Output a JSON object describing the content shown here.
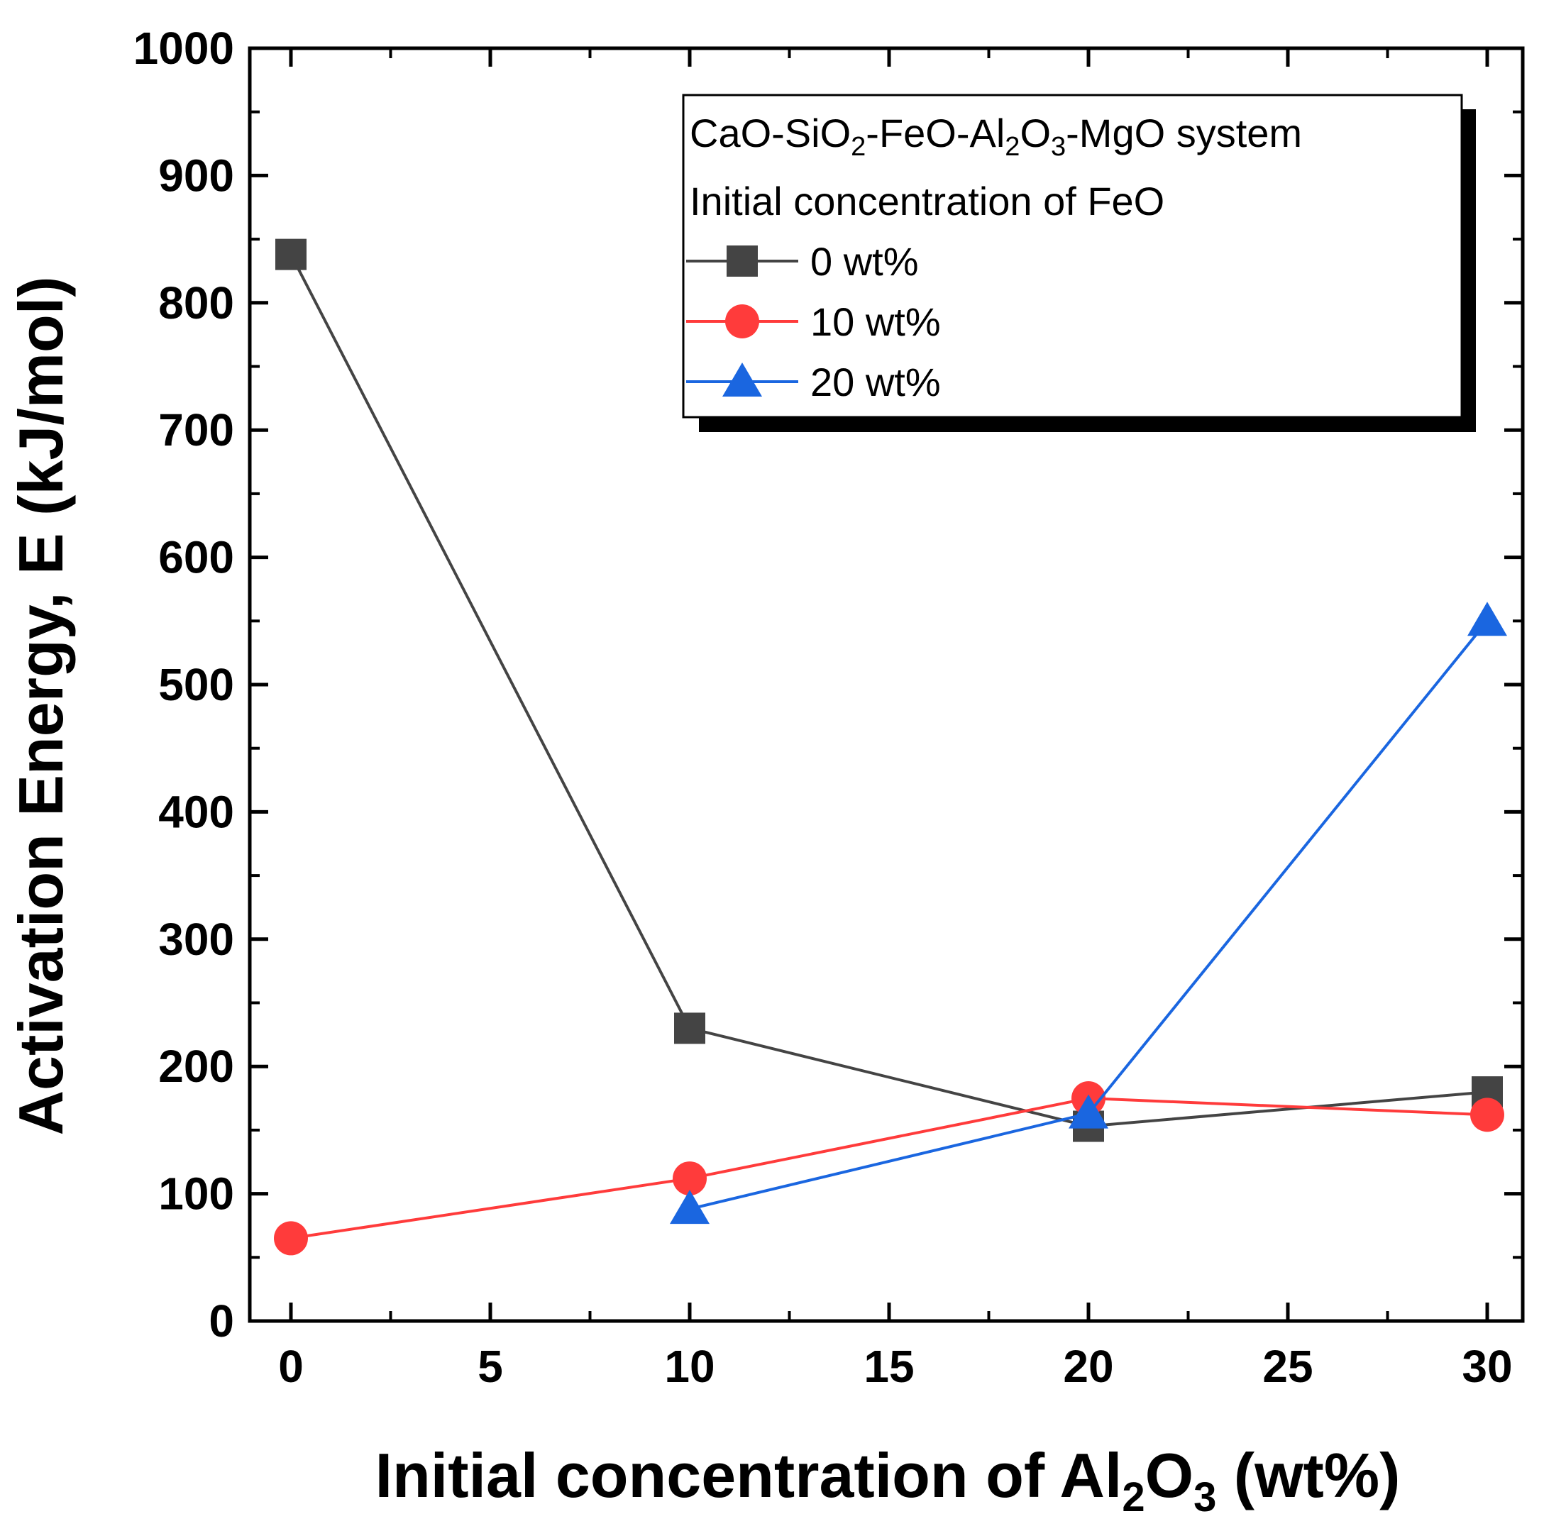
{
  "chart_data": {
    "type": "line",
    "title": "",
    "xlabel": {
      "prefix": "Initial concentration of Al",
      "sub1": "2",
      "mid": "O",
      "sub2": "3",
      "suffix": " (wt%)"
    },
    "ylabel": "Activation Energy, E (kJ/mol)",
    "xlim": [
      -1,
      30.8
    ],
    "ylim": [
      0,
      1000
    ],
    "x_ticks": [
      0,
      5,
      10,
      15,
      20,
      25,
      30
    ],
    "x_tick_labels": [
      "0",
      "5",
      "10",
      "15",
      "20",
      "25",
      "30"
    ],
    "y_ticks": [
      0,
      100,
      200,
      300,
      400,
      500,
      600,
      700,
      800,
      900,
      1000
    ],
    "y_tick_labels": [
      "0",
      "100",
      "200",
      "300",
      "400",
      "500",
      "600",
      "700",
      "800",
      "900",
      "1000"
    ],
    "legend": {
      "position": "top-right",
      "system_title": {
        "p1": "CaO-SiO",
        "s1": "2",
        "p2": "-FeO-Al",
        "s2": "2",
        "p3": "O",
        "s3": "3",
        "p4": "-MgO system"
      },
      "subtitle": "Initial concentration of FeO"
    },
    "series": [
      {
        "name": "0 wt%",
        "marker": "square",
        "color": "#444444",
        "x": [
          0,
          10,
          20,
          30
        ],
        "y": [
          838,
          230,
          153,
          180
        ]
      },
      {
        "name": "10 wt%",
        "marker": "circle",
        "color": "#ff3b3b",
        "x": [
          0,
          10,
          20,
          30
        ],
        "y": [
          65,
          112,
          175,
          162
        ]
      },
      {
        "name": "20 wt%",
        "marker": "triangle",
        "color": "#1a66e0",
        "x": [
          10,
          20,
          30
        ],
        "y": [
          88,
          163,
          550
        ]
      }
    ]
  }
}
